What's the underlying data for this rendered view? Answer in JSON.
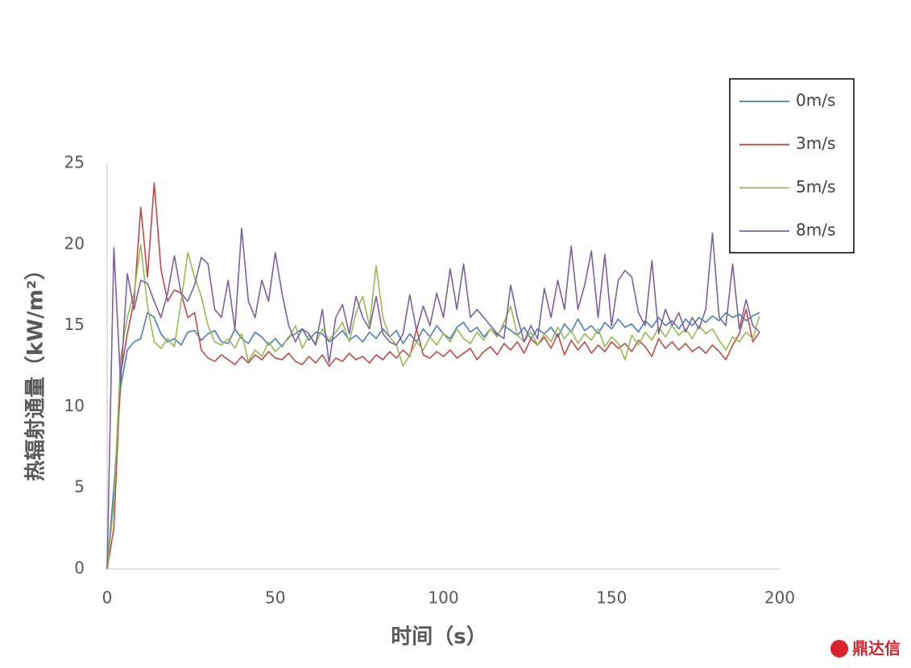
{
  "chart_data": {
    "type": "line",
    "x_label": "时间（s）",
    "y_label": "热辐射通量（kW/m²）",
    "xlim": [
      0,
      200
    ],
    "xticks": [
      0,
      50,
      100,
      150,
      200
    ],
    "ylim": [
      0,
      25
    ],
    "yticks": [
      0,
      5,
      10,
      15,
      20,
      25
    ],
    "grid": false,
    "legend": "top-right",
    "x": [
      0,
      2,
      4,
      6,
      8,
      10,
      12,
      14,
      16,
      18,
      20,
      22,
      24,
      26,
      28,
      30,
      32,
      34,
      36,
      38,
      40,
      42,
      44,
      46,
      48,
      50,
      52,
      54,
      56,
      58,
      60,
      62,
      64,
      66,
      68,
      70,
      72,
      74,
      76,
      78,
      80,
      82,
      84,
      86,
      88,
      90,
      92,
      94,
      96,
      98,
      100,
      102,
      104,
      106,
      108,
      110,
      112,
      114,
      116,
      118,
      120,
      122,
      124,
      126,
      128,
      130,
      132,
      134,
      136,
      138,
      140,
      142,
      144,
      146,
      148,
      150,
      152,
      154,
      156,
      158,
      160,
      162,
      164,
      166,
      168,
      170,
      172,
      174,
      176,
      178,
      180,
      182,
      184,
      186,
      188,
      190,
      192,
      194
    ],
    "series": [
      {
        "name": "0m/s",
        "color": "#4a7ebb",
        "values": [
          0,
          5,
          11.2,
          13.5,
          14.0,
          14.2,
          15.8,
          15.5,
          14.5,
          14.0,
          14.2,
          13.8,
          14.6,
          14.7,
          14.1,
          14.5,
          14.7,
          14.0,
          13.9,
          14.8,
          14.2,
          13.9,
          14.6,
          14.3,
          13.8,
          14.2,
          13.7,
          14.3,
          14.5,
          14.8,
          14.1,
          14.6,
          14.5,
          14.0,
          14.3,
          14.7,
          14.1,
          14.4,
          14.0,
          14.6,
          14.2,
          14.8,
          14.3,
          14.7,
          13.9,
          14.5,
          14.0,
          14.8,
          14.3,
          15.0,
          14.5,
          14.2,
          14.9,
          15.2,
          14.6,
          14.9,
          14.3,
          14.8,
          14.4,
          15.0,
          14.7,
          14.4,
          14.9,
          14.2,
          14.8,
          14.5,
          14.9,
          14.3,
          15.1,
          14.6,
          15.4,
          14.7,
          15.0,
          14.5,
          15.2,
          14.8,
          15.4,
          14.9,
          15.1,
          14.6,
          15.3,
          14.9,
          15.5,
          15.0,
          15.3,
          14.8,
          15.4,
          15.0,
          15.5,
          15.2,
          15.6,
          15.3,
          15.8,
          15.5,
          15.7,
          15.3,
          15.6,
          15.8
        ]
      },
      {
        "name": "3m/s",
        "color": "#be4b48",
        "values": [
          0,
          2.5,
          12,
          14.5,
          16.5,
          22.3,
          18,
          23.8,
          18.5,
          16.5,
          17.2,
          17.0,
          15.5,
          15.8,
          13.5,
          13.0,
          12.8,
          13.2,
          12.9,
          12.6,
          13.1,
          12.7,
          13.2,
          12.9,
          13.4,
          13.0,
          12.9,
          13.3,
          12.8,
          12.6,
          13.1,
          12.7,
          13.2,
          12.5,
          13.0,
          12.8,
          13.3,
          12.9,
          13.1,
          12.7,
          13.2,
          12.9,
          13.4,
          13.0,
          13.5,
          13.1,
          14.8,
          13.2,
          13.0,
          13.4,
          13.1,
          13.5,
          13.0,
          13.3,
          13.6,
          12.9,
          13.4,
          13.7,
          13.2,
          13.9,
          13.5,
          14.0,
          13.3,
          14.2,
          13.8,
          14.3,
          13.6,
          14.5,
          13.2,
          14.1,
          13.5,
          14.0,
          13.3,
          13.8,
          13.4,
          14.0,
          13.6,
          13.9,
          13.4,
          14.1,
          13.7,
          13.1,
          14.2,
          13.6,
          14.0,
          13.5,
          13.9,
          13.4,
          13.7,
          13.3,
          13.8,
          13.4,
          12.9,
          13.8,
          14.5,
          16.0,
          14.0,
          14.6
        ]
      },
      {
        "name": "5m/s",
        "color": "#98b954",
        "values": [
          0,
          4,
          13,
          15.5,
          17,
          20,
          16.2,
          14,
          13.6,
          14.2,
          13.7,
          16.5,
          19.5,
          18,
          16.8,
          15,
          14,
          13.8,
          14.2,
          13.6,
          14.5,
          12.8,
          13.5,
          13.1,
          14.0,
          13.4,
          13.8,
          14.2,
          15.0,
          13.6,
          14.4,
          13.9,
          14.8,
          14.1,
          14.6,
          15.2,
          14.0,
          15.8,
          16.8,
          15.0,
          18.7,
          15.5,
          14.3,
          13.8,
          12.5,
          13.2,
          14.0,
          13.5,
          14.3,
          13.8,
          14.5,
          14.0,
          14.8,
          14.2,
          13.9,
          14.6,
          14.1,
          14.8,
          14.3,
          15.2,
          16.2,
          14.4,
          14.0,
          14.6,
          13.8,
          14.5,
          14.0,
          14.9,
          14.2,
          14.7,
          13.9,
          14.5,
          14.1,
          14.8,
          13.7,
          14.3,
          13.9,
          12.9,
          14.4,
          13.8,
          14.6,
          14.1,
          14.9,
          14.3,
          15.0,
          14.4,
          14.8,
          14.2,
          15.0,
          14.5,
          14.8,
          14.1,
          13.5,
          14.3,
          14.0,
          14.6,
          14.2,
          15.6
        ]
      },
      {
        "name": "8m/s",
        "color": "#7d60a0",
        "values": [
          0,
          19.8,
          11.5,
          18.2,
          16,
          17.8,
          17.6,
          16.5,
          15.5,
          17.0,
          19.3,
          17.0,
          16.5,
          17.5,
          19.2,
          18.8,
          16.0,
          15.5,
          17.8,
          14.8,
          21.0,
          16.5,
          15.5,
          17.8,
          16.5,
          19.5,
          17.0,
          15.0,
          14.0,
          14.8,
          14.5,
          13.8,
          16.0,
          12.7,
          15.5,
          16.3,
          14.5,
          16.8,
          15.5,
          14.8,
          16.8,
          14.5,
          14.0,
          13.8,
          14.5,
          16.9,
          14.7,
          16.2,
          15.0,
          17.0,
          15.5,
          18.5,
          16.0,
          18.8,
          15.5,
          16.0,
          15.5,
          15.0,
          14.5,
          14.2,
          17.5,
          15.5,
          14.0,
          15.0,
          14.2,
          17.3,
          15.5,
          17.8,
          16.0,
          19.9,
          16.0,
          17.5,
          19.6,
          15.5,
          19.4,
          15.0,
          17.8,
          18.4,
          18.0,
          15.8,
          15.0,
          19.0,
          14.5,
          16.0,
          15.0,
          15.8,
          14.6,
          15.5,
          14.8,
          16.0,
          20.7,
          15.5,
          15.0,
          18.8,
          14.8,
          16.6,
          15.0,
          14.6
        ]
      }
    ]
  },
  "watermark": "鼎达信"
}
